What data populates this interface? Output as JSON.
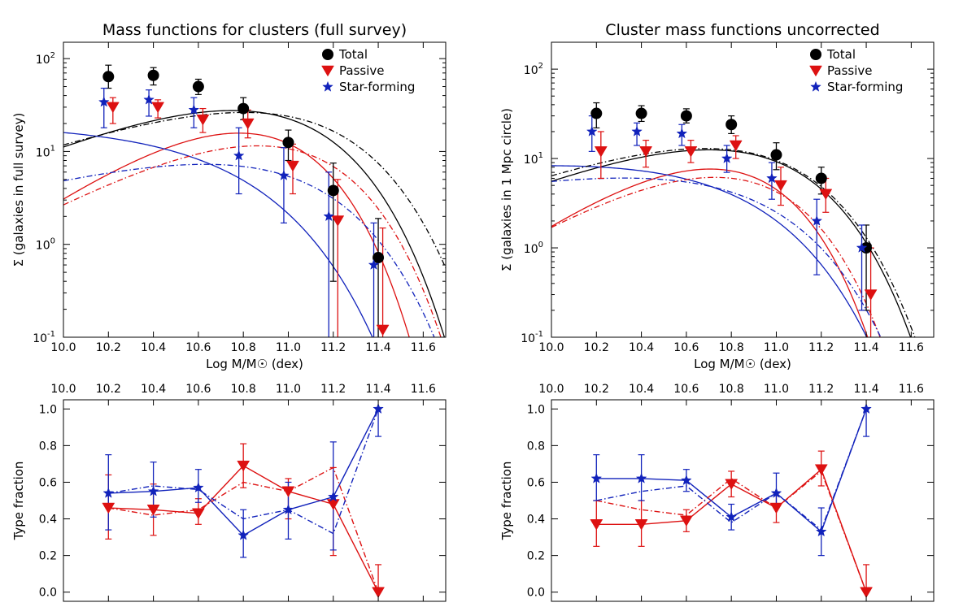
{
  "colors": {
    "total": "#000000",
    "passive": "#dd1111",
    "starforming": "#1122bb"
  },
  "chart_data": [
    {
      "id": "tl",
      "type": "scatter",
      "title": "Mass functions for clusters (full survey)",
      "xlabel": "Log M/M☉ (dex)",
      "ylabel": "Σ (galaxies in full survey)",
      "yscale": "log",
      "xlim": [
        10.0,
        11.7
      ],
      "ylim": [
        0.1,
        150
      ],
      "xticks": [
        "10.0",
        "10.2",
        "10.4",
        "10.6",
        "10.8",
        "11.0",
        "11.2",
        "11.4",
        "11.6"
      ],
      "yticks": [
        {
          "v": 0.1,
          "label": "10",
          "exp": "-1"
        },
        {
          "v": 1,
          "label": "10",
          "exp": "0"
        },
        {
          "v": 10,
          "label": "10",
          "exp": "1"
        },
        {
          "v": 100,
          "label": "10",
          "exp": "2"
        }
      ],
      "legend": [
        "Total",
        "Passive",
        "Star-forming"
      ],
      "legend_position": "top-right",
      "series": [
        {
          "name": "Total",
          "color": "total",
          "marker": "circle",
          "x": [
            10.2,
            10.4,
            10.6,
            10.8,
            11.0,
            11.2,
            11.4
          ],
          "y": [
            64,
            66,
            50,
            29,
            12.5,
            3.8,
            0.72
          ],
          "err_lo": [
            48,
            52,
            41,
            22,
            8,
            0.4,
            0.1
          ],
          "err_hi": [
            85,
            80,
            60,
            38,
            17,
            7.5,
            1.9
          ]
        },
        {
          "name": "Passive",
          "color": "passive",
          "marker": "triangle",
          "x": [
            10.22,
            10.42,
            10.62,
            10.82,
            11.02,
            11.22,
            11.42
          ],
          "y": [
            30,
            30,
            22,
            20,
            7,
            1.8,
            0.12
          ],
          "err_lo": [
            20,
            23,
            16,
            14,
            3.5,
            0.1,
            0.1
          ],
          "err_hi": [
            38,
            36,
            29,
            28,
            12,
            5,
            1.5
          ]
        },
        {
          "name": "Star-forming",
          "color": "starforming",
          "marker": "star",
          "x": [
            10.18,
            10.38,
            10.58,
            10.78,
            10.98,
            11.18,
            11.38
          ],
          "y": [
            34,
            36,
            28,
            9,
            5.5,
            2,
            0.6
          ],
          "err_lo": [
            18,
            24,
            18,
            3.5,
            1.7,
            0.1,
            0.1
          ],
          "err_hi": [
            48,
            46,
            38,
            18,
            11,
            6,
            1.7
          ]
        }
      ],
      "curves": [
        {
          "color": "total",
          "style": "solid",
          "phi": 75,
          "alpha": 0.0,
          "mstar": 10.75
        },
        {
          "color": "passive",
          "style": "solid",
          "phi": 35,
          "alpha": 0.7,
          "mstar": 10.55
        },
        {
          "color": "starforming",
          "style": "solid",
          "phi": 20,
          "alpha": -1.0,
          "mstar": 10.65
        },
        {
          "color": "total",
          "style": "dashdot",
          "phi": 70,
          "alpha": -0.2,
          "mstar": 10.9
        },
        {
          "color": "passive",
          "style": "dashdot",
          "phi": 30,
          "alpha": 0.3,
          "mstar": 10.75
        },
        {
          "color": "starforming",
          "style": "dashdot",
          "phi": 18,
          "alpha": -0.4,
          "mstar": 10.85
        }
      ]
    },
    {
      "id": "tr",
      "type": "scatter",
      "title": "Cluster mass functions uncorrected",
      "xlabel": "Log M/M☉ (dex)",
      "ylabel": "Σ (galaxies in 1 Mpc circle)",
      "yscale": "log",
      "xlim": [
        10.0,
        11.7
      ],
      "ylim": [
        0.1,
        200
      ],
      "xticks": [
        "10.0",
        "10.2",
        "10.4",
        "10.6",
        "10.8",
        "11.0",
        "11.2",
        "11.4",
        "11.6"
      ],
      "yticks": [
        {
          "v": 0.1,
          "label": "10",
          "exp": "-1"
        },
        {
          "v": 1,
          "label": "10",
          "exp": "0"
        },
        {
          "v": 10,
          "label": "10",
          "exp": "1"
        },
        {
          "v": 100,
          "label": "10",
          "exp": "2"
        }
      ],
      "legend": [
        "Total",
        "Passive",
        "Star-forming"
      ],
      "legend_position": "top-right",
      "series": [
        {
          "name": "Total",
          "color": "total",
          "marker": "circle",
          "x": [
            10.2,
            10.4,
            10.6,
            10.8,
            11.0,
            11.2,
            11.4
          ],
          "y": [
            32,
            32,
            30,
            24,
            11,
            6,
            1
          ],
          "err_lo": [
            22,
            26,
            25,
            19,
            7.5,
            4,
            0.2
          ],
          "err_hi": [
            42,
            39,
            36,
            30,
            15,
            8,
            1.8
          ]
        },
        {
          "name": "Passive",
          "color": "passive",
          "marker": "triangle",
          "x": [
            10.22,
            10.42,
            10.62,
            10.82,
            11.02,
            11.22,
            11.42
          ],
          "y": [
            12,
            12,
            12,
            14,
            5,
            4,
            0.3
          ],
          "err_lo": [
            6,
            8,
            9,
            10,
            3,
            2.5,
            0.1
          ],
          "err_hi": [
            20,
            16,
            16,
            18,
            8,
            6,
            1
          ]
        },
        {
          "name": "Star-forming",
          "color": "starforming",
          "marker": "star",
          "x": [
            10.18,
            10.38,
            10.58,
            10.78,
            10.98,
            11.18,
            11.38
          ],
          "y": [
            20,
            20,
            19,
            10,
            6,
            2,
            1
          ],
          "err_lo": [
            12,
            14,
            14,
            7,
            3.5,
            0.5,
            0.2
          ],
          "err_hi": [
            30,
            25,
            24,
            14,
            9,
            3.5,
            1.8
          ]
        }
      ],
      "curves": [
        {
          "color": "total",
          "style": "solid",
          "phi": 34,
          "alpha": 0.0,
          "mstar": 10.7
        },
        {
          "color": "passive",
          "style": "solid",
          "phi": 16,
          "alpha": 0.8,
          "mstar": 10.45
        },
        {
          "color": "starforming",
          "style": "solid",
          "phi": 14,
          "alpha": -0.8,
          "mstar": 10.68
        },
        {
          "color": "total",
          "style": "dashdot",
          "phi": 35,
          "alpha": -0.1,
          "mstar": 10.73
        },
        {
          "color": "passive",
          "style": "dashdot",
          "phi": 15,
          "alpha": 0.5,
          "mstar": 10.55
        },
        {
          "color": "starforming",
          "style": "dashdot",
          "phi": 13,
          "alpha": -0.6,
          "mstar": 10.72
        }
      ]
    },
    {
      "id": "bl",
      "type": "line",
      "xlabel": "",
      "ylabel": "Type fraction",
      "yscale": "linear",
      "xlim": [
        10.0,
        11.7
      ],
      "ylim": [
        -0.05,
        1.05
      ],
      "xticks": [
        "10.0",
        "10.2",
        "10.4",
        "10.6",
        "10.8",
        "11.0",
        "11.2",
        "11.4",
        "11.6"
      ],
      "xticks_top": true,
      "yticks": [
        {
          "v": 0.0,
          "label": "0.0"
        },
        {
          "v": 0.2,
          "label": "0.2"
        },
        {
          "v": 0.4,
          "label": "0.4"
        },
        {
          "v": 0.6,
          "label": "0.6"
        },
        {
          "v": 0.8,
          "label": "0.8"
        },
        {
          "v": 1.0,
          "label": "1.0"
        }
      ],
      "series": [
        {
          "name": "Passive",
          "color": "passive",
          "marker": "triangle",
          "style": "solid",
          "x": [
            10.2,
            10.4,
            10.6,
            10.8,
            11.0,
            11.2,
            11.4
          ],
          "y": [
            0.46,
            0.45,
            0.43,
            0.69,
            0.55,
            0.48,
            0.0
          ],
          "err_lo": [
            0.29,
            0.31,
            0.37,
            0.57,
            0.4,
            0.2,
            0.0
          ],
          "err_hi": [
            0.64,
            0.59,
            0.51,
            0.81,
            0.62,
            0.68,
            0.15
          ]
        },
        {
          "name": "Star-forming",
          "color": "starforming",
          "marker": "star",
          "style": "solid",
          "x": [
            10.2,
            10.4,
            10.6,
            10.8,
            11.0,
            11.2,
            11.4
          ],
          "y": [
            0.54,
            0.55,
            0.57,
            0.31,
            0.45,
            0.52,
            1.0
          ],
          "err_lo": [
            0.34,
            0.41,
            0.49,
            0.19,
            0.29,
            0.23,
            0.85
          ],
          "err_hi": [
            0.75,
            0.71,
            0.67,
            0.45,
            0.6,
            0.82,
            1.0
          ]
        },
        {
          "name": "Passive (alt)",
          "color": "passive",
          "marker": "none",
          "style": "dashdot",
          "x": [
            10.2,
            10.4,
            10.6,
            10.8,
            11.0,
            11.2,
            11.4
          ],
          "y": [
            0.46,
            0.42,
            0.45,
            0.6,
            0.55,
            0.68,
            0.0
          ]
        },
        {
          "name": "Star-forming (alt)",
          "color": "starforming",
          "marker": "none",
          "style": "dashdot",
          "x": [
            10.2,
            10.4,
            10.6,
            10.8,
            11.0,
            11.2,
            11.4
          ],
          "y": [
            0.54,
            0.58,
            0.56,
            0.4,
            0.45,
            0.32,
            1.0
          ]
        }
      ]
    },
    {
      "id": "br",
      "type": "line",
      "xlabel": "",
      "ylabel": "Type fraction",
      "yscale": "linear",
      "xlim": [
        10.0,
        11.7
      ],
      "ylim": [
        -0.05,
        1.05
      ],
      "xticks": [
        "10.0",
        "10.2",
        "10.4",
        "10.6",
        "10.8",
        "11.0",
        "11.2",
        "11.4",
        "11.6"
      ],
      "xticks_top": true,
      "yticks": [
        {
          "v": 0.0,
          "label": "0.0"
        },
        {
          "v": 0.2,
          "label": "0.2"
        },
        {
          "v": 0.4,
          "label": "0.4"
        },
        {
          "v": 0.6,
          "label": "0.6"
        },
        {
          "v": 0.8,
          "label": "0.8"
        },
        {
          "v": 1.0,
          "label": "1.0"
        }
      ],
      "series": [
        {
          "name": "Passive",
          "color": "passive",
          "marker": "triangle",
          "style": "solid",
          "x": [
            10.2,
            10.4,
            10.6,
            10.8,
            11.0,
            11.2,
            11.4
          ],
          "y": [
            0.37,
            0.37,
            0.39,
            0.59,
            0.46,
            0.67,
            0.0
          ],
          "err_lo": [
            0.25,
            0.25,
            0.33,
            0.52,
            0.38,
            0.58,
            0.0
          ],
          "err_hi": [
            0.5,
            0.5,
            0.45,
            0.66,
            0.54,
            0.77,
            0.15
          ]
        },
        {
          "name": "Star-forming",
          "color": "starforming",
          "marker": "star",
          "style": "solid",
          "x": [
            10.2,
            10.4,
            10.6,
            10.8,
            11.0,
            11.2,
            11.4
          ],
          "y": [
            0.62,
            0.62,
            0.61,
            0.41,
            0.54,
            0.33,
            1.0
          ],
          "err_lo": [
            0.5,
            0.5,
            0.55,
            0.34,
            0.46,
            0.2,
            0.85
          ],
          "err_hi": [
            0.75,
            0.75,
            0.67,
            0.48,
            0.65,
            0.46,
            1.0
          ]
        },
        {
          "name": "Passive (alt)",
          "color": "passive",
          "marker": "none",
          "style": "dashdot",
          "x": [
            10.2,
            10.4,
            10.6,
            10.8,
            11.0,
            11.2,
            11.4
          ],
          "y": [
            0.5,
            0.45,
            0.42,
            0.62,
            0.46,
            0.66,
            0.0
          ]
        },
        {
          "name": "Star-forming (alt)",
          "color": "starforming",
          "marker": "none",
          "style": "dashdot",
          "x": [
            10.2,
            10.4,
            10.6,
            10.8,
            11.0,
            11.2,
            11.4
          ],
          "y": [
            0.5,
            0.55,
            0.58,
            0.38,
            0.54,
            0.34,
            1.0
          ]
        }
      ]
    }
  ]
}
